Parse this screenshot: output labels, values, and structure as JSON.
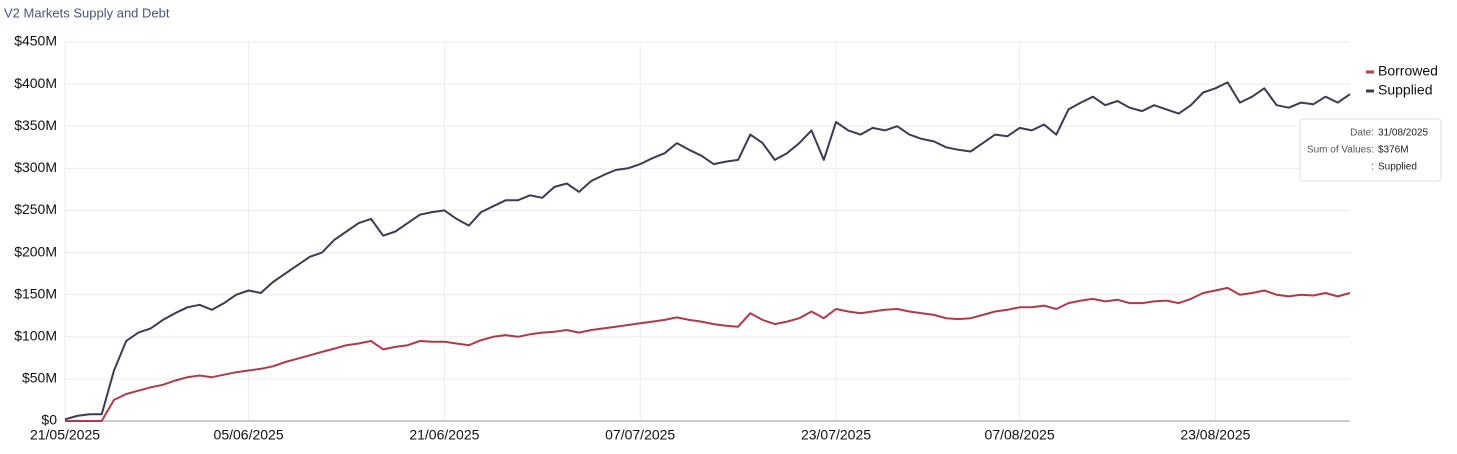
{
  "chart_data": {
    "type": "line",
    "title": "V2 Markets Supply and Debt",
    "x": [
      "21/05/2025",
      "22/05/2025",
      "23/05/2025",
      "24/05/2025",
      "25/05/2025",
      "26/05/2025",
      "27/05/2025",
      "28/05/2025",
      "29/05/2025",
      "30/05/2025",
      "31/05/2025",
      "01/06/2025",
      "02/06/2025",
      "03/06/2025",
      "04/06/2025",
      "05/06/2025",
      "06/06/2025",
      "07/06/2025",
      "08/06/2025",
      "09/06/2025",
      "10/06/2025",
      "11/06/2025",
      "12/06/2025",
      "13/06/2025",
      "14/06/2025",
      "15/06/2025",
      "16/06/2025",
      "17/06/2025",
      "18/06/2025",
      "19/06/2025",
      "20/06/2025",
      "21/06/2025",
      "22/06/2025",
      "23/06/2025",
      "24/06/2025",
      "25/06/2025",
      "26/06/2025",
      "27/06/2025",
      "28/06/2025",
      "29/06/2025",
      "30/06/2025",
      "01/07/2025",
      "02/07/2025",
      "03/07/2025",
      "04/07/2025",
      "05/07/2025",
      "06/07/2025",
      "07/07/2025",
      "08/07/2025",
      "09/07/2025",
      "10/07/2025",
      "11/07/2025",
      "12/07/2025",
      "13/07/2025",
      "14/07/2025",
      "15/07/2025",
      "16/07/2025",
      "17/07/2025",
      "18/07/2025",
      "19/07/2025",
      "20/07/2025",
      "21/07/2025",
      "22/07/2025",
      "23/07/2025",
      "24/07/2025",
      "25/07/2025",
      "26/07/2025",
      "27/07/2025",
      "28/07/2025",
      "29/07/2025",
      "30/07/2025",
      "31/07/2025",
      "01/08/2025",
      "02/08/2025",
      "03/08/2025",
      "04/08/2025",
      "05/08/2025",
      "06/08/2025",
      "07/08/2025",
      "08/08/2025",
      "09/08/2025",
      "10/08/2025",
      "11/08/2025",
      "12/08/2025",
      "13/08/2025",
      "14/08/2025",
      "15/08/2025",
      "16/08/2025",
      "17/08/2025",
      "18/08/2025",
      "19/08/2025",
      "20/08/2025",
      "21/08/2025",
      "22/08/2025",
      "23/08/2025",
      "24/08/2025",
      "25/08/2025",
      "26/08/2025",
      "27/08/2025",
      "28/08/2025",
      "29/08/2025",
      "30/08/2025",
      "31/08/2025",
      "01/09/2025",
      "02/09/2025",
      "03/09/2025"
    ],
    "series": [
      {
        "name": "Borrowed",
        "color": "#b03a48",
        "values": [
          0,
          0,
          0,
          0,
          25,
          32,
          36,
          40,
          43,
          48,
          52,
          54,
          52,
          55,
          58,
          60,
          62,
          65,
          70,
          74,
          78,
          82,
          86,
          90,
          92,
          95,
          85,
          88,
          90,
          95,
          94,
          94,
          92,
          90,
          96,
          100,
          102,
          100,
          103,
          105,
          106,
          108,
          105,
          108,
          110,
          112,
          114,
          116,
          118,
          120,
          123,
          120,
          118,
          115,
          113,
          112,
          128,
          120,
          115,
          118,
          122,
          130,
          122,
          133,
          130,
          128,
          130,
          132,
          133,
          130,
          128,
          126,
          122,
          121,
          122,
          126,
          130,
          132,
          135,
          135,
          137,
          133,
          140,
          143,
          145,
          142,
          144,
          140,
          140,
          142,
          143,
          140,
          145,
          152,
          155,
          158,
          150,
          152,
          155,
          150,
          148,
          150,
          149,
          152,
          148,
          152
        ]
      },
      {
        "name": "Supplied",
        "color": "#3b3d4f",
        "values": [
          2,
          6,
          8,
          8,
          60,
          95,
          105,
          110,
          120,
          128,
          135,
          138,
          132,
          140,
          150,
          155,
          152,
          165,
          175,
          185,
          195,
          200,
          215,
          225,
          235,
          240,
          220,
          225,
          235,
          245,
          248,
          250,
          240,
          232,
          248,
          255,
          262,
          262,
          268,
          265,
          278,
          282,
          272,
          285,
          292,
          298,
          300,
          305,
          312,
          318,
          330,
          322,
          315,
          305,
          308,
          310,
          340,
          330,
          310,
          318,
          330,
          345,
          310,
          355,
          345,
          340,
          348,
          345,
          350,
          340,
          335,
          332,
          325,
          322,
          320,
          330,
          340,
          338,
          348,
          345,
          352,
          340,
          370,
          378,
          385,
          375,
          380,
          372,
          368,
          375,
          370,
          365,
          375,
          390,
          395,
          402,
          378,
          385,
          395,
          375,
          372,
          378,
          376,
          385,
          378,
          388
        ]
      }
    ],
    "xlim": [
      "21/05/2025",
      "03/09/2025"
    ],
    "xticks": [
      "21/05/2025",
      "05/06/2025",
      "21/06/2025",
      "07/07/2025",
      "23/07/2025",
      "07/08/2025",
      "23/08/2025"
    ],
    "ylim": [
      0,
      450
    ],
    "yticks": [
      {
        "value": 0,
        "label": "$0"
      },
      {
        "value": 50,
        "label": "$50M"
      },
      {
        "value": 100,
        "label": "$100M"
      },
      {
        "value": 150,
        "label": "$150M"
      },
      {
        "value": 200,
        "label": "$200M"
      },
      {
        "value": 250,
        "label": "$250M"
      },
      {
        "value": 300,
        "label": "$300M"
      },
      {
        "value": 350,
        "label": "$350M"
      },
      {
        "value": 400,
        "label": "$400M"
      },
      {
        "value": 450,
        "label": "$450M"
      }
    ],
    "grid": true,
    "legend": "top-right",
    "tooltip": [
      [
        "Date:",
        "31/08/2025"
      ],
      [
        "Sum of Values:",
        "$376M"
      ],
      [
        ":",
        "Supplied"
      ]
    ]
  }
}
